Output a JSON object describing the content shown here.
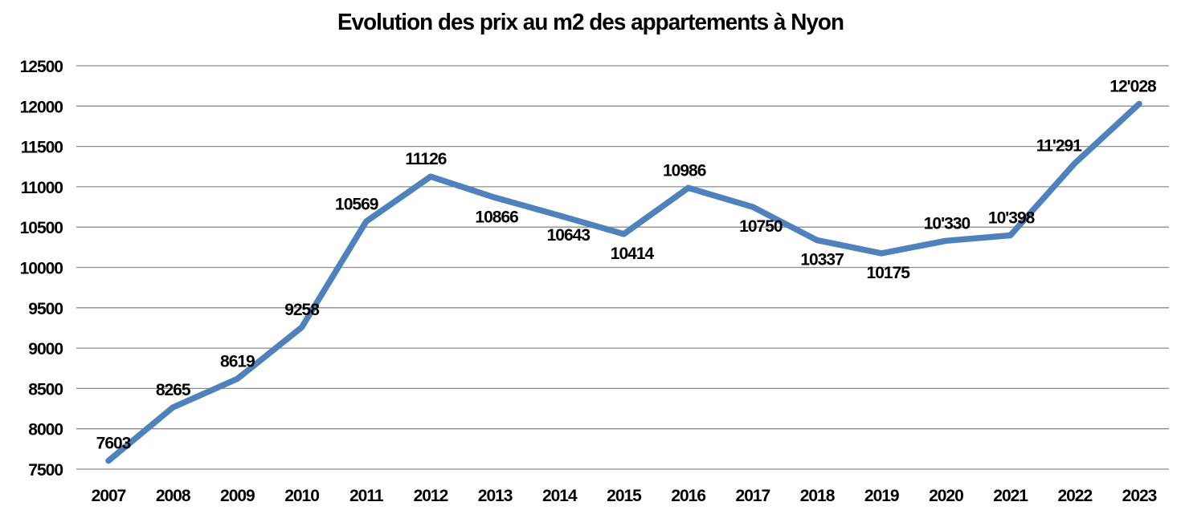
{
  "chart_data": {
    "type": "line",
    "title": "Evolution des prix au m2 des appartements à Nyon",
    "categories": [
      "2007",
      "2008",
      "2009",
      "2010",
      "2011",
      "2012",
      "2013",
      "2014",
      "2015",
      "2016",
      "2017",
      "2018",
      "2019",
      "2020",
      "2021",
      "2022",
      "2023"
    ],
    "values": [
      7603,
      8265,
      8619,
      9258,
      10569,
      11126,
      10866,
      10643,
      10414,
      10986,
      10750,
      10337,
      10175,
      10330,
      10398,
      11291,
      12028
    ],
    "point_labels": [
      "7603",
      "8265",
      "8619",
      "9258",
      "10569",
      "11126",
      "10866",
      "10643",
      "10414",
      "10986",
      "10750",
      "10337",
      "10175",
      "10'330",
      "10'398",
      "11'291",
      "12'028"
    ],
    "label_positions": [
      "above",
      "above",
      "above",
      "above",
      "above",
      "above",
      "below",
      "below",
      "below",
      "above",
      "below",
      "below",
      "below",
      "above",
      "above",
      "above",
      "above"
    ],
    "label_dx": [
      6,
      0,
      0,
      0,
      -12,
      -6,
      2,
      11,
      10,
      -5,
      10,
      6,
      8,
      1,
      1,
      -20,
      -8
    ],
    "xlabel": "",
    "ylabel": "",
    "ylim": [
      7500,
      12500
    ],
    "ytick_step": 500,
    "yticks": [
      "12500",
      "12000",
      "11500",
      "11000",
      "10500",
      "10000",
      "9500",
      "9000",
      "8500",
      "8000",
      "7500"
    ],
    "grid": true,
    "legend": "none",
    "line_color": "#4F81BD",
    "grid_color": "#8C8C8C",
    "text_color": "#000000",
    "background_color": "#FFFFFF"
  }
}
